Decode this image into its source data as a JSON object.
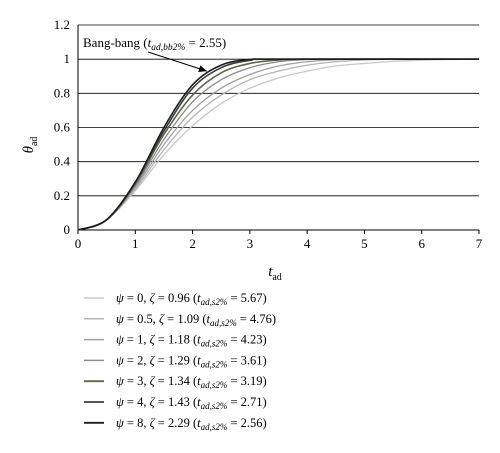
{
  "chart_data": {
    "type": "line",
    "xlabel": "t",
    "xlabel_sub": "ad",
    "ylabel": "θ",
    "ylabel_sub": "ad",
    "xlim": [
      0,
      7
    ],
    "ylim": [
      0,
      1.2
    ],
    "xticks": [
      "0",
      "1",
      "2",
      "3",
      "4",
      "5",
      "6",
      "7"
    ],
    "yticks": [
      "0",
      "0.2",
      "0.4",
      "0.6",
      "0.8",
      "1",
      "1.2"
    ],
    "grid": "horizontal",
    "legend_position": "bottom",
    "annotation": {
      "prefix": "Bang-bang (",
      "t": "t",
      "sub": "ad,bb2%",
      "suffix": " = 2.55)",
      "target_x": 2.25,
      "target_y": 0.93
    },
    "series": [
      {
        "psi": "0",
        "zeta": "0.96",
        "ts": "5.67",
        "color": "#c8c8c8",
        "values": [
          [
            0,
            0
          ],
          [
            0.5,
            0.06
          ],
          [
            1,
            0.23
          ],
          [
            1.5,
            0.44
          ],
          [
            2,
            0.61
          ],
          [
            2.5,
            0.74
          ],
          [
            3,
            0.83
          ],
          [
            3.5,
            0.89
          ],
          [
            4,
            0.93
          ],
          [
            4.5,
            0.96
          ],
          [
            5,
            0.975
          ],
          [
            5.5,
            0.987
          ],
          [
            6,
            0.994
          ],
          [
            6.5,
            0.998
          ],
          [
            7,
            1.0
          ]
        ]
      },
      {
        "psi": "0.5",
        "zeta": "1.09",
        "ts": "4.76",
        "color": "#b4b4b4",
        "values": [
          [
            0,
            0
          ],
          [
            0.5,
            0.06
          ],
          [
            1,
            0.24
          ],
          [
            1.5,
            0.47
          ],
          [
            2,
            0.66
          ],
          [
            2.5,
            0.79
          ],
          [
            3,
            0.88
          ],
          [
            3.5,
            0.93
          ],
          [
            4,
            0.965
          ],
          [
            4.5,
            0.985
          ],
          [
            5,
            0.995
          ],
          [
            5.5,
            1.0
          ],
          [
            7,
            1.0
          ]
        ]
      },
      {
        "psi": "1",
        "zeta": "1.18",
        "ts": "4.23",
        "color": "#a0a0a0",
        "values": [
          [
            0,
            0
          ],
          [
            0.5,
            0.06
          ],
          [
            1,
            0.25
          ],
          [
            1.5,
            0.5
          ],
          [
            2,
            0.7
          ],
          [
            2.5,
            0.83
          ],
          [
            3,
            0.91
          ],
          [
            3.5,
            0.96
          ],
          [
            4,
            0.985
          ],
          [
            4.5,
            0.997
          ],
          [
            5,
            1.0
          ],
          [
            7,
            1.0
          ]
        ]
      },
      {
        "psi": "2",
        "zeta": "1.29",
        "ts": "3.61",
        "color": "#8c8c8c",
        "values": [
          [
            0,
            0
          ],
          [
            0.5,
            0.06
          ],
          [
            1,
            0.26
          ],
          [
            1.5,
            0.53
          ],
          [
            2,
            0.75
          ],
          [
            2.5,
            0.88
          ],
          [
            3,
            0.95
          ],
          [
            3.5,
            0.985
          ],
          [
            4,
            0.998
          ],
          [
            4.5,
            1.0
          ],
          [
            7,
            1.0
          ]
        ]
      },
      {
        "psi": "3",
        "zeta": "1.34",
        "ts": "3.19",
        "color": "#5a6b3e",
        "values": [
          [
            0,
            0
          ],
          [
            0.5,
            0.06
          ],
          [
            1,
            0.27
          ],
          [
            1.5,
            0.56
          ],
          [
            2,
            0.79
          ],
          [
            2.5,
            0.92
          ],
          [
            3,
            0.975
          ],
          [
            3.5,
            0.995
          ],
          [
            4,
            1.0
          ],
          [
            7,
            1.0
          ]
        ]
      },
      {
        "psi": "4",
        "zeta": "1.43",
        "ts": "2.71",
        "color": "#3c3c3c",
        "values": [
          [
            0,
            0
          ],
          [
            0.5,
            0.06
          ],
          [
            1,
            0.28
          ],
          [
            1.5,
            0.58
          ],
          [
            2,
            0.83
          ],
          [
            2.5,
            0.95
          ],
          [
            3,
            0.993
          ],
          [
            3.5,
            1.0
          ],
          [
            7,
            1.0
          ]
        ]
      },
      {
        "psi": "8",
        "zeta": "2.29",
        "ts": "2.56",
        "color": "#1e1e1e",
        "values": [
          [
            0,
            0
          ],
          [
            0.5,
            0.06
          ],
          [
            1,
            0.28
          ],
          [
            1.5,
            0.6
          ],
          [
            2,
            0.85
          ],
          [
            2.5,
            0.965
          ],
          [
            3,
            0.998
          ],
          [
            3.5,
            1.0
          ],
          [
            7,
            1.0
          ]
        ]
      }
    ],
    "legend_parts": {
      "psi_symbol": "ψ",
      "zeta_symbol": "ζ",
      "eq": " = ",
      "t": "t",
      "sub": "ad,s2%"
    }
  }
}
